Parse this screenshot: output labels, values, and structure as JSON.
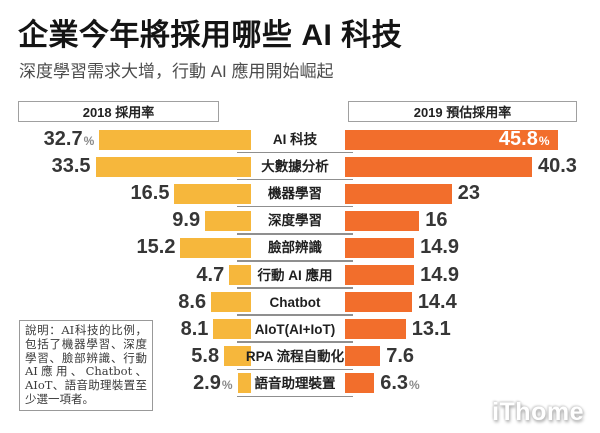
{
  "page": {
    "title": "企業今年將採用哪些 AI 科技",
    "subtitle": "深度學習需求大增，行動 AI 應用開始崛起",
    "note": "說明：AI科技的比例，包括了機器學習、深度學習、臉部辨識、行動AI應用、Chatbot、AIoT、語音助理裝置至少選一項者。",
    "watermark": "iThome"
  },
  "colors": {
    "bar_2018": "#F6B73C",
    "bar_2019": "#F26E2C",
    "value_text": "#363636",
    "value_text_inside": "#FFFFFF",
    "divider": "#8F8F8F"
  },
  "chart_data": {
    "type": "bar",
    "orientation": "horizontal_tornado",
    "unit": "%",
    "title": "企業今年將採用哪些 AI 科技",
    "subtitle": "深度學習需求大增，行動 AI 應用開始崛起",
    "categories": [
      "AI 科技",
      "大數據分析",
      "機器學習",
      "深度學習",
      "臉部辨識",
      "行動 AI 應用",
      "Chatbot",
      "AIoT(AI+IoT)",
      "RPA 流程自動化",
      "語音助理裝置"
    ],
    "series": [
      {
        "name": "2018 採用率",
        "side": "left",
        "color": "#F6B73C",
        "values": [
          32.7,
          33.5,
          16.5,
          9.9,
          15.2,
          4.7,
          8.6,
          8.1,
          5.8,
          2.9
        ]
      },
      {
        "name": "2019 預估採用率",
        "side": "right",
        "color": "#F26E2C",
        "values": [
          45.8,
          40.3,
          23,
          16,
          14.9,
          14.9,
          14.4,
          13.1,
          7.6,
          6.3
        ]
      }
    ],
    "xlim": [
      0,
      46
    ],
    "percent_suffix_rows": [
      0,
      9
    ],
    "inside_label_rows_2019": [
      0
    ],
    "legend_position": "top-boxes",
    "grid": false
  }
}
